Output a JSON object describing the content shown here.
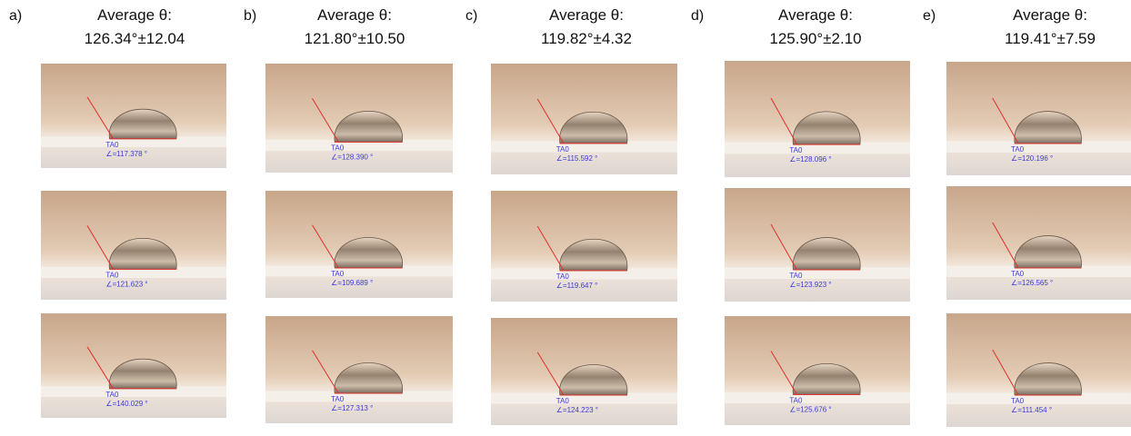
{
  "panels": [
    {
      "label": "a)",
      "title": "Average θ:",
      "value": "126.34°±12.04",
      "images": [
        {
          "tag": "TA0",
          "angle": "∠=117.378 °"
        },
        {
          "tag": "TA0",
          "angle": "∠=121.623 °"
        },
        {
          "tag": "TA0",
          "angle": "∠=140.029 °"
        }
      ]
    },
    {
      "label": "b)",
      "title": "Average θ:",
      "value": "121.80°±10.50",
      "images": [
        {
          "tag": "TA0",
          "angle": "∠=128.390 °"
        },
        {
          "tag": "TA0",
          "angle": "∠=109.689 °"
        },
        {
          "tag": "TA0",
          "angle": "∠=127.313 °"
        }
      ]
    },
    {
      "label": "c)",
      "title": "Average θ:",
      "value": "119.82°±4.32",
      "images": [
        {
          "tag": "TA0",
          "angle": "∠=115.592 °"
        },
        {
          "tag": "TA0",
          "angle": "∠=119.647 °"
        },
        {
          "tag": "TA0",
          "angle": "∠=124.223 °"
        }
      ]
    },
    {
      "label": "d)",
      "title": "Average θ:",
      "value": "125.90°±2.10",
      "images": [
        {
          "tag": "TA0",
          "angle": "∠=128.096 °"
        },
        {
          "tag": "TA0",
          "angle": "∠=123.923 °"
        },
        {
          "tag": "TA0",
          "angle": "∠=125.676 °"
        }
      ]
    },
    {
      "label": "e)",
      "title": "Average θ:",
      "value": "119.41°±7.59",
      "images": [
        {
          "tag": "TA0",
          "angle": "∠=120.196 °"
        },
        {
          "tag": "TA0",
          "angle": "∠=126.565 °"
        },
        {
          "tag": "TA0",
          "angle": "∠=111.454 °"
        }
      ]
    }
  ]
}
